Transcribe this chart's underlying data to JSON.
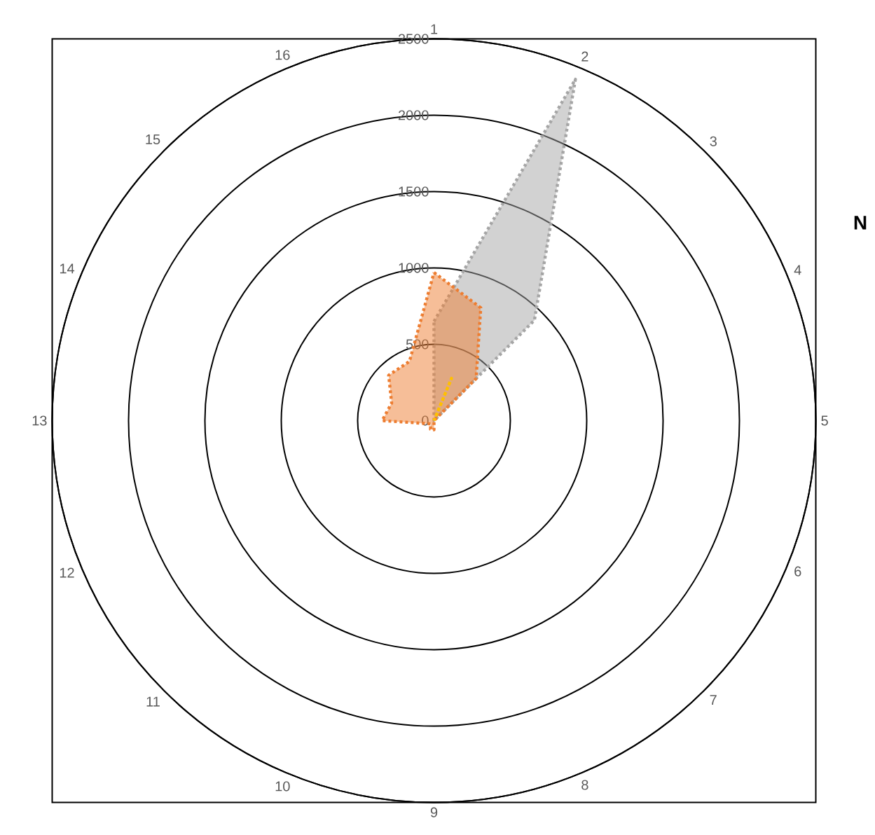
{
  "chart_data": {
    "type": "radar",
    "categories": [
      "1",
      "2",
      "3",
      "4",
      "5",
      "6",
      "7",
      "8",
      "9",
      "10",
      "11",
      "12",
      "13",
      "14",
      "15",
      "16"
    ],
    "series": [
      {
        "color": "#a5a5a5",
        "values": [
          650,
          2420,
          930,
          0,
          0,
          0,
          0,
          0,
          0,
          0,
          0,
          0,
          0,
          0,
          0,
          0
        ]
      },
      {
        "color": "#ed7d31",
        "values": [
          970,
          800,
          390,
          0,
          0,
          0,
          0,
          0,
          60,
          60,
          30,
          50,
          340,
          300,
          420,
          420
        ]
      },
      {
        "color": "#ffc000",
        "values": [
          0,
          300,
          0,
          0,
          0,
          0,
          0,
          0,
          0,
          0,
          0,
          0,
          0,
          0,
          0,
          0
        ]
      }
    ],
    "ylim": [
      0,
      2500
    ],
    "yticks": [
      0,
      500,
      1000,
      1500,
      2000,
      2500
    ],
    "grid": true,
    "line_style": "dotted",
    "annotations": [
      "N"
    ]
  }
}
